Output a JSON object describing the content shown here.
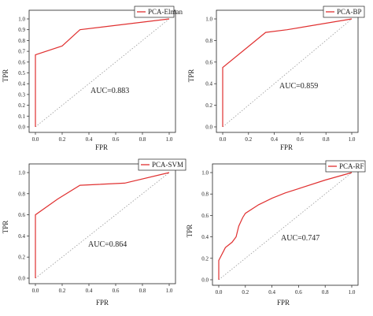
{
  "colors": {
    "roc": "#e03030",
    "diagonal": "#999999",
    "axis": "#222222"
  },
  "chart_data": [
    {
      "type": "line",
      "legend": "PCA-Elman",
      "legend_position": "top-right",
      "auc_text": "AUC=0.883",
      "xlabel": "FPR",
      "ylabel": "TPR",
      "xlim": [
        0,
        1
      ],
      "ylim": [
        0,
        1
      ],
      "xticks": [
        "0.0",
        "0.2",
        "0.4",
        "0.6",
        "0.8",
        "1.0"
      ],
      "yticks": [
        "0.0",
        "0.1",
        "0.2",
        "0.3",
        "0.4",
        "0.5",
        "0.6",
        "0.7",
        "0.8",
        "0.9",
        "1.0"
      ],
      "x": [
        0.0,
        0.0,
        0.2,
        0.333,
        1.0
      ],
      "y": [
        0.0,
        0.667,
        0.75,
        0.9,
        1.0
      ]
    },
    {
      "type": "line",
      "legend": "PCA-BP",
      "legend_position": "top-right",
      "auc_text": "AUC=0.859",
      "xlabel": "FPR",
      "ylabel": "TPR",
      "xlim": [
        0,
        1
      ],
      "ylim": [
        0,
        1
      ],
      "xticks": [
        "0.0",
        "0.2",
        "0.4",
        "0.6",
        "0.8",
        "1.0"
      ],
      "yticks": [
        "0.0",
        "0.2",
        "0.4",
        "0.6",
        "0.8",
        "1.0"
      ],
      "x": [
        0.0,
        0.0,
        0.333,
        0.5,
        1.0
      ],
      "y": [
        0.0,
        0.55,
        0.875,
        0.9,
        1.0
      ]
    },
    {
      "type": "line",
      "legend": "PCA-SVM",
      "legend_position": "top-right",
      "auc_text": "AUC=0.864",
      "xlabel": "FPR",
      "ylabel": "TPR",
      "xlim": [
        0,
        1
      ],
      "ylim": [
        0,
        1
      ],
      "xticks": [
        "0.0",
        "0.2",
        "0.4",
        "0.6",
        "0.8",
        "1.0"
      ],
      "yticks": [
        "0.0",
        "0.2",
        "0.4",
        "0.6",
        "0.8",
        "1.0"
      ],
      "x": [
        0.0,
        0.0,
        0.167,
        0.333,
        0.667,
        1.0
      ],
      "y": [
        0.0,
        0.6,
        0.75,
        0.88,
        0.9,
        1.0
      ]
    },
    {
      "type": "line",
      "legend": "PCA-RF",
      "legend_position": "top-right",
      "auc_text": "AUC=0.747",
      "xlabel": "FPR",
      "ylabel": "TPR",
      "xlim": [
        0,
        1
      ],
      "ylim": [
        0,
        1
      ],
      "xticks": [
        "0.0",
        "0.2",
        "0.4",
        "0.6",
        "0.8",
        "1.0"
      ],
      "yticks": [
        "0.0",
        "0.2",
        "0.4",
        "0.6",
        "0.8",
        "1.0"
      ],
      "x": [
        0.0,
        0.0,
        0.05,
        0.1,
        0.13,
        0.15,
        0.18,
        0.2,
        0.3,
        0.4,
        0.5,
        0.6,
        0.8,
        1.0
      ],
      "y": [
        0.0,
        0.18,
        0.3,
        0.35,
        0.4,
        0.5,
        0.58,
        0.62,
        0.7,
        0.76,
        0.81,
        0.85,
        0.93,
        1.0
      ]
    }
  ]
}
